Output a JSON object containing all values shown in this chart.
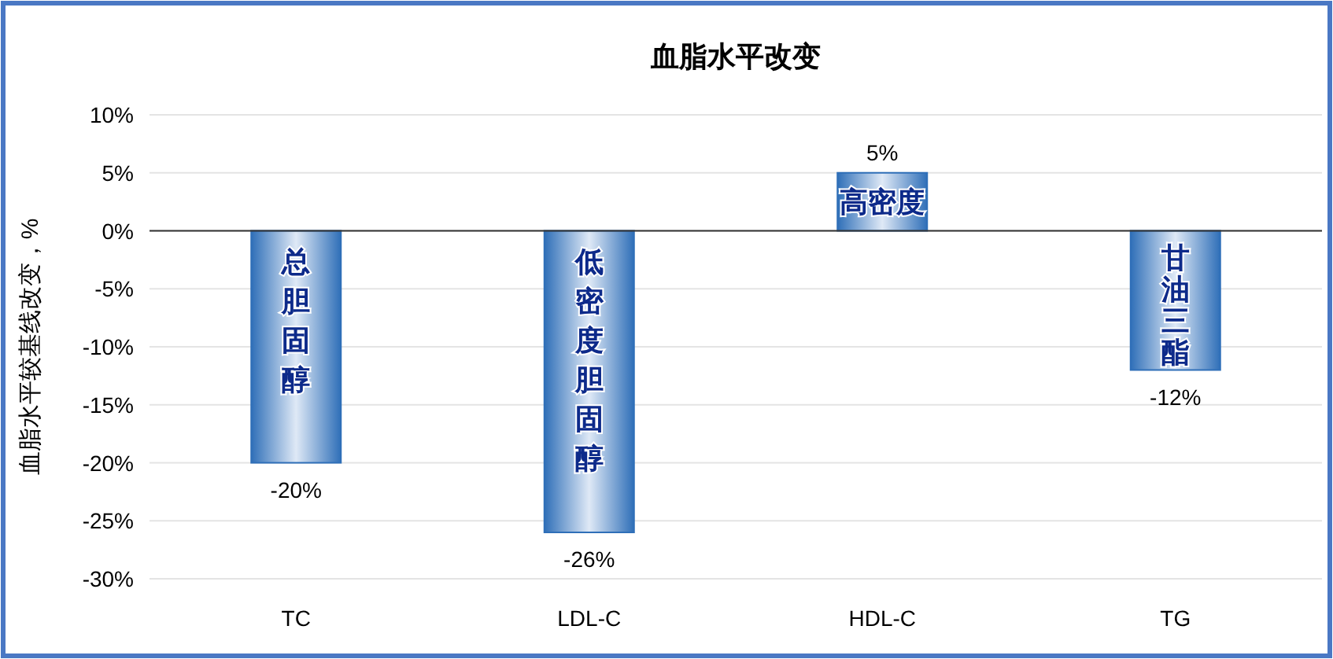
{
  "chart_data": {
    "type": "bar",
    "title": "血脂水平改变",
    "ylabel": "血脂水平较基线改变，%",
    "categories": [
      "TC",
      "LDL-C",
      "HDL-C",
      "TG"
    ],
    "values": [
      -20,
      -26,
      5,
      -12
    ],
    "value_labels": [
      "-20%",
      "-26%",
      "5%",
      "-12%"
    ],
    "color": "#2f6fb8",
    "ylim": [
      -30,
      10
    ],
    "yticks": [
      {
        "value": -30,
        "label": "-30%"
      },
      {
        "value": -25,
        "label": "-25%"
      },
      {
        "value": -20,
        "label": "-20%"
      },
      {
        "value": -15,
        "label": "-15%"
      },
      {
        "value": -10,
        "label": "-10%"
      },
      {
        "value": -5,
        "label": "-5%"
      },
      {
        "value": 0,
        "label": "0%"
      },
      {
        "value": 5,
        "label": "5%"
      },
      {
        "value": 10,
        "label": "10%"
      }
    ],
    "annotations": [
      "总胆固醇",
      "低密度胆固醇",
      "高密度",
      "甘油三酯"
    ],
    "grid": "y"
  }
}
